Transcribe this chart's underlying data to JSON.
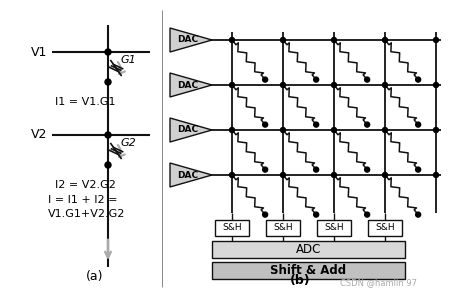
{
  "bg_color": "#ffffff",
  "line_color": "#111111",
  "gray_color": "#999999",
  "box_gray": "#c8c8c8",
  "dac_gray": "#d0d0d0",
  "fig_width": 4.74,
  "fig_height": 2.95,
  "label_a": "(a)",
  "label_b": "(b)",
  "watermark": "CSDN @hamlin 97",
  "v1_label": "V1",
  "v2_label": "V2",
  "g1_label": "G1",
  "g2_label": "G2",
  "i1_label": "I1 = V1.G1",
  "i2_label": "I2 = V2.G2",
  "i_label": "I = I1 + I2 =\nV1.G1+V2.G2",
  "adc_label": "ADC",
  "shift_label": "Shift & Add",
  "sh_label": "S&H",
  "dac_label": "DAC"
}
